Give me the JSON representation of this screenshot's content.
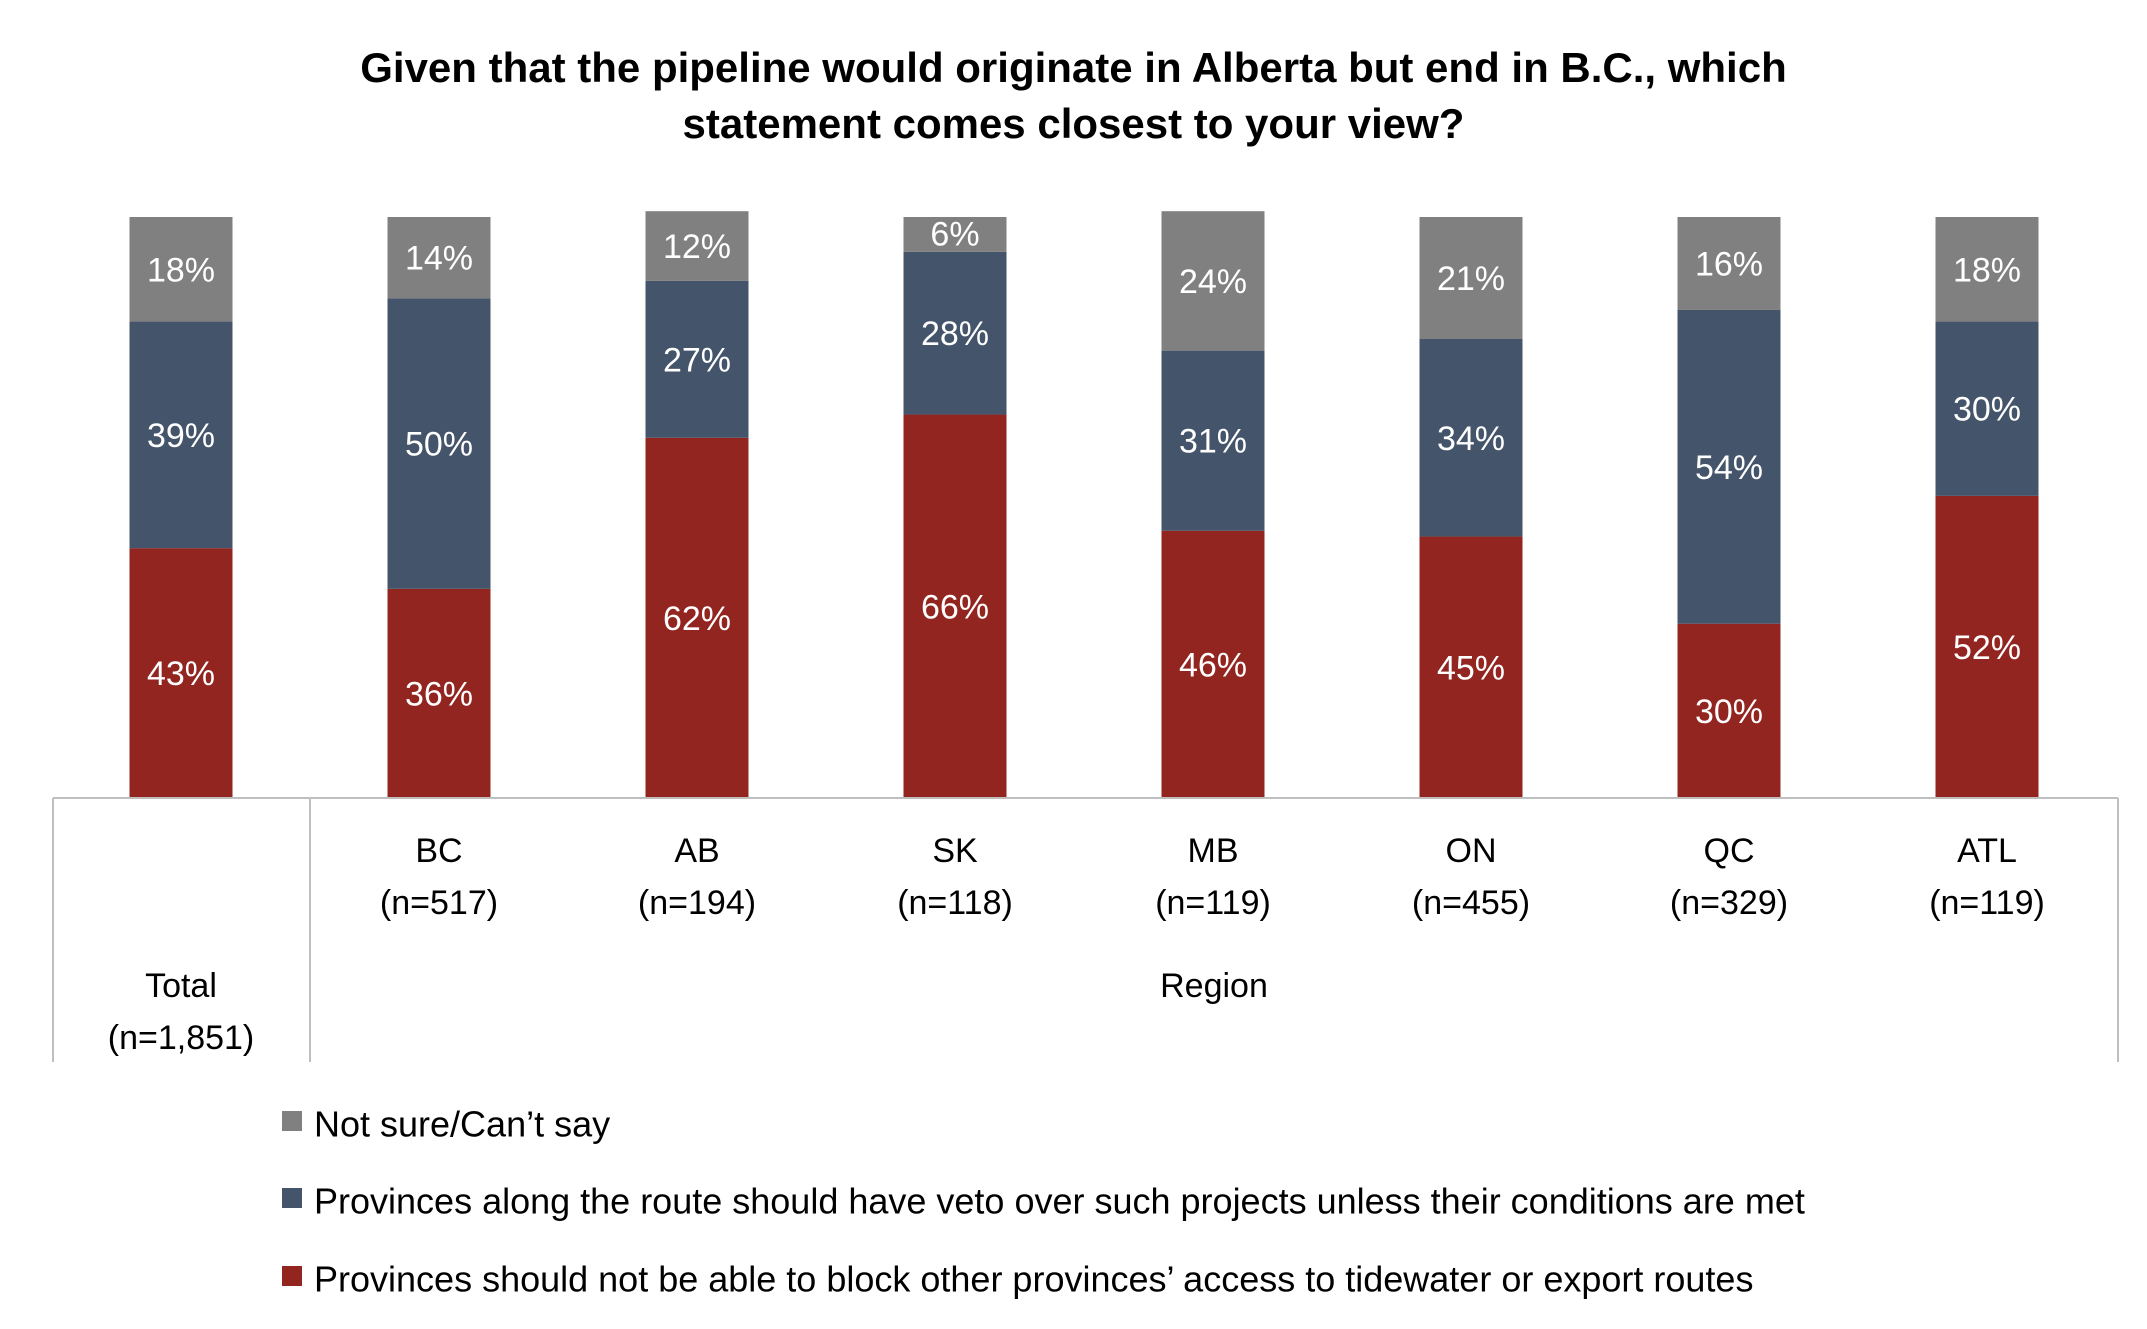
{
  "chart_data": {
    "type": "bar",
    "stacked": true,
    "title": [
      "Given that the pipeline would originate in Alberta but end in B.C., which",
      "statement comes closest to your view?"
    ],
    "categories": [
      {
        "label": "Total",
        "sub": "(n=1,851)",
        "group": ""
      },
      {
        "label": "BC",
        "sub": "(n=517)",
        "group": "Region"
      },
      {
        "label": "AB",
        "sub": "(n=194)",
        "group": "Region"
      },
      {
        "label": "SK",
        "sub": "(n=118)",
        "group": "Region"
      },
      {
        "label": "MB",
        "sub": "(n=119)",
        "group": "Region"
      },
      {
        "label": "ON",
        "sub": "(n=455)",
        "group": "Region"
      },
      {
        "label": "QC",
        "sub": "(n=329)",
        "group": "Region"
      },
      {
        "label": "ATL",
        "sub": "(n=119)",
        "group": "Region"
      }
    ],
    "group_label": "Region",
    "series": [
      {
        "name": "Provinces should not be able to block other provinces’ access to tidewater or export routes",
        "color": "#922520",
        "values": [
          43,
          36,
          62,
          66,
          46,
          45,
          30,
          52
        ],
        "labels": [
          "43%",
          "36%",
          "62%",
          "66%",
          "46%",
          "45%",
          "30%",
          "52%"
        ]
      },
      {
        "name": "Provinces along the route should have veto over such projects unless their conditions are met",
        "color": "#44546A",
        "values": [
          39,
          50,
          27,
          28,
          31,
          34,
          54,
          30
        ],
        "labels": [
          "39%",
          "50%",
          "27%",
          "28%",
          "31%",
          "34%",
          "54%",
          "30%"
        ]
      },
      {
        "name": "Not sure/Can’t say",
        "color": "#808080",
        "values": [
          18,
          14,
          12,
          6,
          24,
          21,
          16,
          18
        ],
        "labels": [
          "18%",
          "14%",
          "12%",
          "6%",
          "24%",
          "21%",
          "16%",
          "18%"
        ]
      }
    ],
    "legend_order": [
      2,
      1,
      0
    ],
    "ylim": [
      0,
      100
    ]
  }
}
